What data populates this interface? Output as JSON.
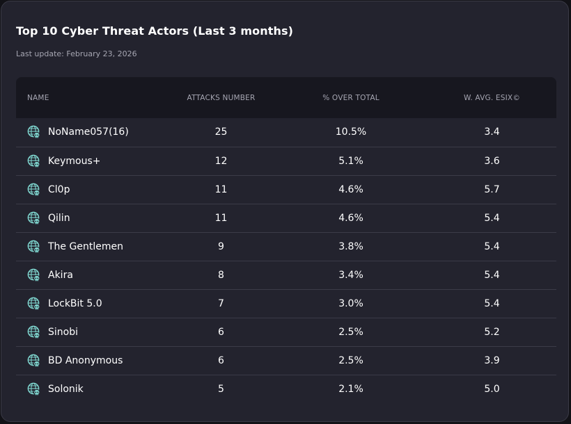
{
  "card": {
    "title": "Top 10 Cyber Threat Actors (Last 3 months)",
    "last_update": "Last update: February 23, 2026"
  },
  "table": {
    "columns": [
      "NAME",
      "ATTACKS NUMBER",
      "% OVER TOTAL",
      "W. AVG. ESIX©"
    ],
    "row_icon": "globe-skull-icon",
    "rows": [
      {
        "name": "NoName057(16)",
        "attacks": "25",
        "pct": "10.5%",
        "esix": "3.4"
      },
      {
        "name": "Keymous+",
        "attacks": "12",
        "pct": "5.1%",
        "esix": "3.6"
      },
      {
        "name": "Cl0p",
        "attacks": "11",
        "pct": "4.6%",
        "esix": "5.7"
      },
      {
        "name": "Qilin",
        "attacks": "11",
        "pct": "4.6%",
        "esix": "5.4"
      },
      {
        "name": "The Gentlemen",
        "attacks": "9",
        "pct": "3.8%",
        "esix": "5.4"
      },
      {
        "name": "Akira",
        "attacks": "8",
        "pct": "3.4%",
        "esix": "5.4"
      },
      {
        "name": "LockBit 5.0",
        "attacks": "7",
        "pct": "3.0%",
        "esix": "5.4"
      },
      {
        "name": "Sinobi",
        "attacks": "6",
        "pct": "2.5%",
        "esix": "5.2"
      },
      {
        "name": "BD Anonymous",
        "attacks": "6",
        "pct": "2.5%",
        "esix": "3.9"
      },
      {
        "name": "Solonik",
        "attacks": "5",
        "pct": "2.1%",
        "esix": "5.0"
      }
    ]
  },
  "colors": {
    "card_background": "#23232e",
    "header_background": "#17171f",
    "icon_accent": "#7fd6cf",
    "muted_text": "#a6a6b2"
  }
}
